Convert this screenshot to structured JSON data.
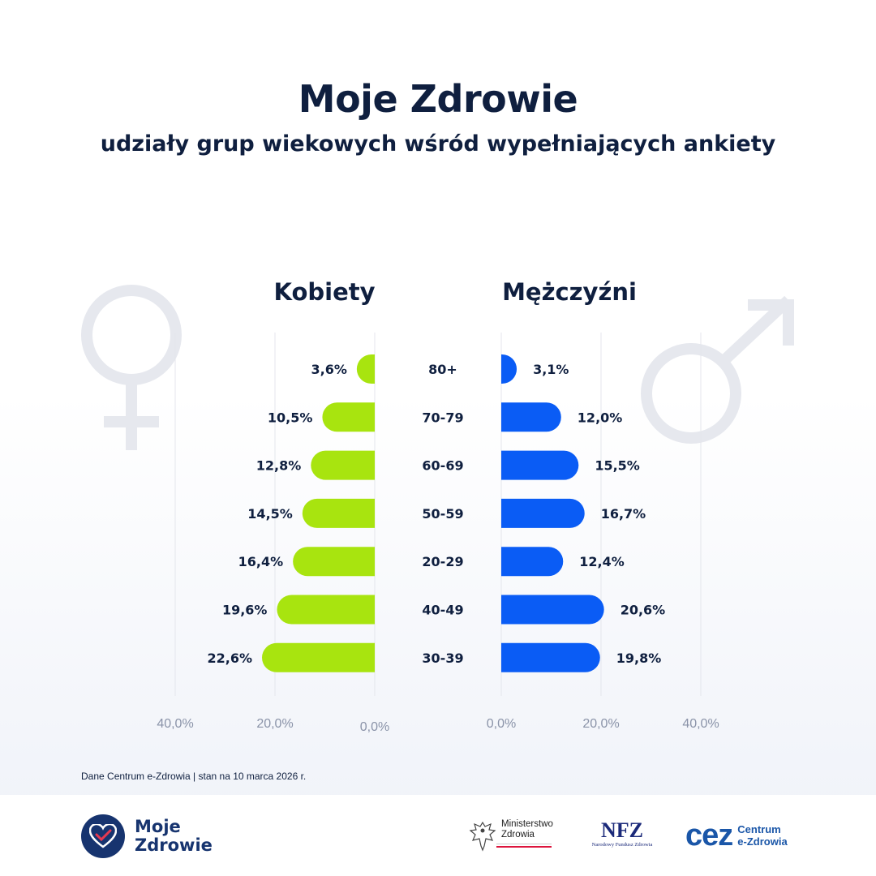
{
  "header": {
    "title": "Moje Zdrowie",
    "subtitle": "udziały grup wiekowych wśród wypełniających ankiety"
  },
  "chart_data": {
    "type": "bar",
    "title": "udziały grup wiekowych wśród wypełniających ankiety",
    "categories": [
      "80+",
      "70-79",
      "60-69",
      "50-59",
      "20-29",
      "40-49",
      "30-39"
    ],
    "series": [
      {
        "name": "Kobiety",
        "color": "#a8e40f",
        "values": [
          3.6,
          10.5,
          12.8,
          14.5,
          16.4,
          19.6,
          22.6
        ],
        "labels": [
          "3,6%",
          "10,5%",
          "12,8%",
          "14,5%",
          "16,4%",
          "19,6%",
          "22,6%"
        ],
        "direction": "left"
      },
      {
        "name": "Mężczyźni",
        "color": "#0a5cf5",
        "values": [
          3.1,
          12.0,
          15.5,
          16.7,
          12.4,
          20.6,
          19.8
        ],
        "labels": [
          "3,1%",
          "12,0%",
          "15,5%",
          "16,7%",
          "12,4%",
          "20,6%",
          "19,8%"
        ],
        "direction": "right"
      }
    ],
    "xlim": [
      0,
      40
    ],
    "ticks_left": [
      "40,0%",
      "20,0%",
      "0,0%"
    ],
    "ticks_right": [
      "0,0%",
      "20,0%",
      "40,0%"
    ],
    "grid": true
  },
  "source": "Dane Centrum e-Zdrowia | stan na 10 marca 2026 r.",
  "footer": {
    "app_logo_line1": "Moje",
    "app_logo_line2": "Zdrowie",
    "ministry_line1": "Ministerstwo",
    "ministry_line2": "Zdrowia",
    "nfz_mark": "NFZ",
    "nfz_sub": "Narodowy Fundusz Zdrowia",
    "cez_mark": "cez",
    "cez_line1": "Centrum",
    "cez_line2": "e-Zdrowia"
  }
}
